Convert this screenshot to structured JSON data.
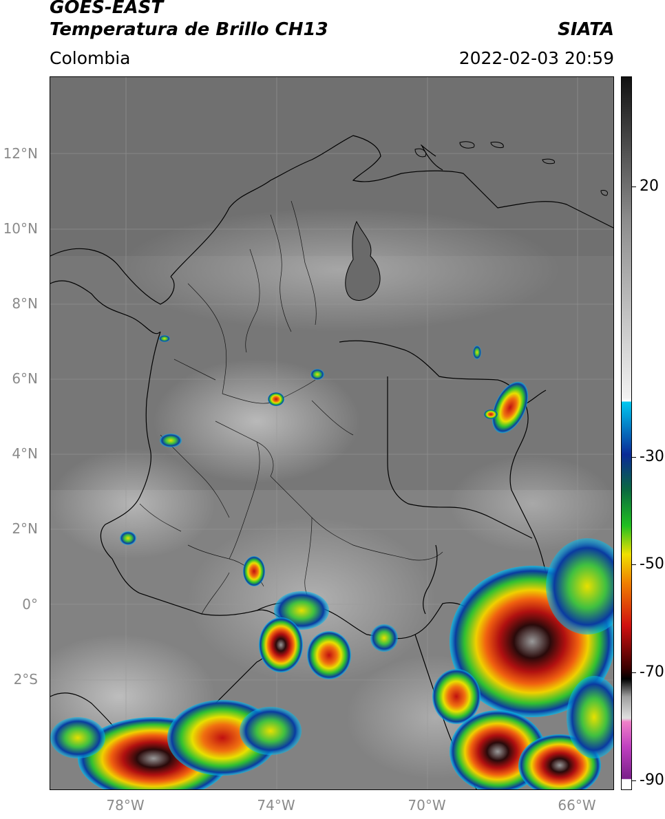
{
  "header": {
    "satellite": "GOES-EAST",
    "product": "Temperatura de Brillo CH13",
    "region": "Colombia",
    "source": "SIATA",
    "datetime": "2022-02-03 20:59"
  },
  "axes": {
    "lat_ticks": [
      "12°N",
      "10°N",
      "8°N",
      "6°N",
      "4°N",
      "2°N",
      "0°",
      "2°S"
    ],
    "lon_ticks": [
      "78°W",
      "74°W",
      "70°W",
      "66°W"
    ]
  },
  "colorbar": {
    "labels": [
      "20",
      "-30",
      "-50",
      "-70",
      "-90"
    ],
    "colors": {
      "warm_top": "#111111",
      "warm_mid": "#8c8c8c",
      "warm_low": "#f2f2f2",
      "cyan": "#00c8f0",
      "blue": "#0a2a96",
      "green": "#20c020",
      "yellow": "#f0e000",
      "orange": "#f08000",
      "red": "#d01010",
      "darkred": "#3a0000",
      "gray": "#a0a0a0",
      "pink": "#f080c8",
      "magenta": "#c040c0",
      "purple": "#7a1f8a"
    }
  }
}
